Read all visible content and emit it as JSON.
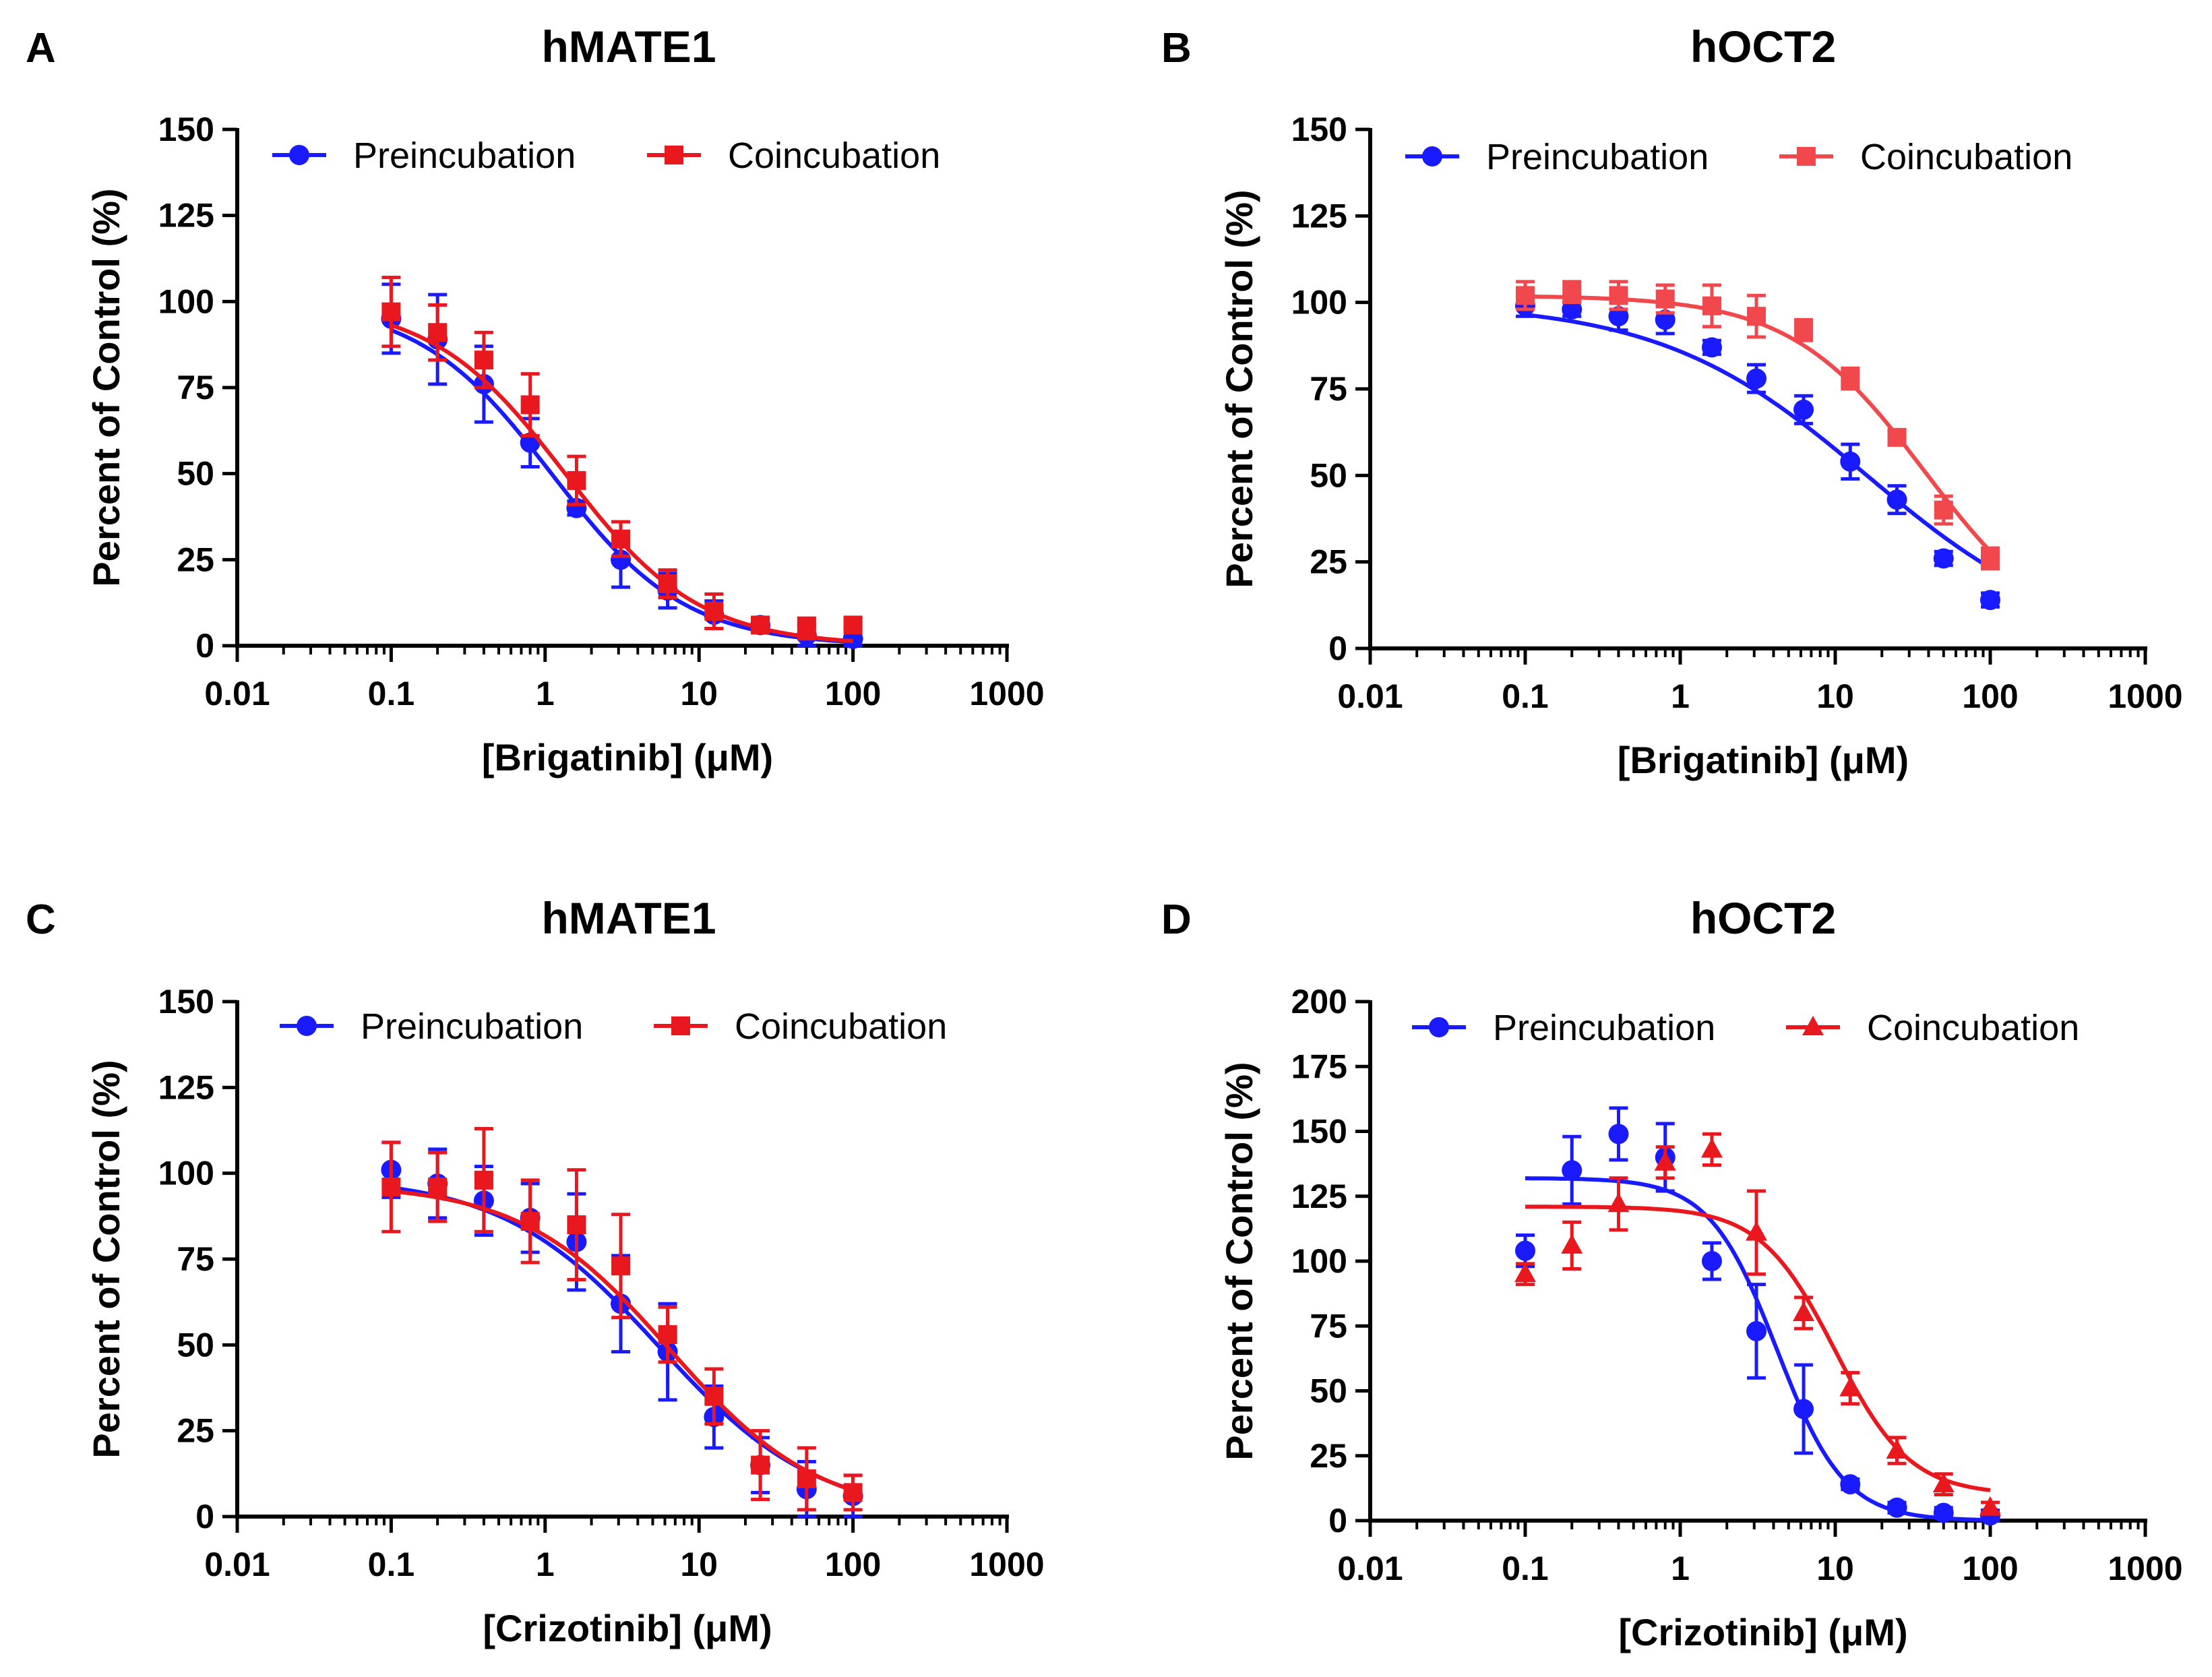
{
  "figure": {
    "colors": {
      "blue": "#1a1aff",
      "red": "#e8181e",
      "red_light": "#f0484c",
      "axis": "#000000"
    }
  },
  "chart_data": [
    {
      "panel": "A",
      "type": "scatter",
      "title": "hMATE1",
      "xlabel": "[Brigatinib] (μM)",
      "ylabel": "Percent of Control (%)",
      "xscale": "log",
      "xlim": [
        0.01,
        1000
      ],
      "ylim": [
        0,
        150
      ],
      "yticks": [
        0,
        25,
        50,
        75,
        100,
        125,
        150
      ],
      "xticks": [
        0.01,
        0.1,
        1,
        10,
        100,
        1000
      ],
      "xtick_labels": [
        "0.01",
        "0.1",
        "1",
        "10",
        "100",
        "1000"
      ],
      "legend_position": "top",
      "series": [
        {
          "name": "Preincubation",
          "color": "#1a1aff",
          "marker": "circle",
          "x": [
            0.1,
            0.2,
            0.4,
            0.8,
            1.6,
            3.1,
            6.25,
            12.5,
            25,
            50,
            100
          ],
          "y": [
            95,
            89,
            76,
            59,
            40,
            25,
            16,
            9,
            6,
            3,
            2
          ],
          "err": [
            10,
            13,
            11,
            7,
            2,
            8,
            5,
            4,
            2,
            3,
            3
          ],
          "fit": {
            "top": 100,
            "bottom": 0,
            "ic50": 1.1,
            "hill": 1.0
          }
        },
        {
          "name": "Coincubation",
          "color": "#e8181e",
          "marker": "square",
          "x": [
            0.1,
            0.2,
            0.4,
            0.8,
            1.6,
            3.1,
            6.25,
            12.5,
            25,
            50,
            100
          ],
          "y": [
            97,
            91,
            83,
            70,
            48,
            31,
            18,
            10,
            6,
            5,
            6
          ],
          "err": [
            10,
            8,
            8,
            9,
            7,
            5,
            4,
            5,
            2,
            3,
            2
          ],
          "fit": {
            "top": 100,
            "bottom": 0,
            "ic50": 1.35,
            "hill": 1.0
          }
        }
      ]
    },
    {
      "panel": "B",
      "type": "scatter",
      "title": "hOCT2",
      "xlabel": "[Brigatinib] (μM)",
      "ylabel": "Percent of Control (%)",
      "xscale": "log",
      "xlim": [
        0.01,
        1000
      ],
      "ylim": [
        0,
        150
      ],
      "yticks": [
        0,
        25,
        50,
        75,
        100,
        125,
        150
      ],
      "xticks": [
        0.01,
        0.1,
        1,
        10,
        100,
        1000
      ],
      "xtick_labels": [
        "0.01",
        "0.1",
        "1",
        "10",
        "100",
        "1000"
      ],
      "legend_position": "top",
      "series": [
        {
          "name": "Preincubation",
          "color": "#1a1aff",
          "marker": "circle",
          "x": [
            0.1,
            0.2,
            0.4,
            0.8,
            1.6,
            3.1,
            6.25,
            12.5,
            25,
            50,
            100
          ],
          "y": [
            99,
            98,
            96,
            95,
            87,
            78,
            69,
            54,
            43,
            26,
            14
          ],
          "err": [
            3,
            2,
            4,
            4,
            2,
            4,
            4,
            5,
            4,
            2,
            2
          ],
          "fit": {
            "top": 100,
            "bottom": 0,
            "ic50": 16,
            "hill": 0.65
          }
        },
        {
          "name": "Coincubation",
          "color": "#f0484c",
          "marker": "square",
          "x": [
            0.1,
            0.2,
            0.4,
            0.8,
            1.6,
            3.1,
            6.25,
            12.5,
            25,
            50,
            100
          ],
          "y": [
            102,
            103,
            102,
            101,
            99,
            96,
            92,
            78,
            61,
            40,
            26
          ],
          "err": [
            4,
            3,
            4,
            4,
            6,
            6,
            3,
            3,
            2,
            4,
            3
          ],
          "fit": {
            "top": 102,
            "bottom": 0,
            "ic50": 38,
            "hill": 1.0
          }
        }
      ]
    },
    {
      "panel": "C",
      "type": "scatter",
      "title": "hMATE1",
      "xlabel": "[Crizotinib] (μM)",
      "ylabel": "Percent of Control (%)",
      "xscale": "log",
      "xlim": [
        0.01,
        1000
      ],
      "ylim": [
        0,
        150
      ],
      "yticks": [
        0,
        25,
        50,
        75,
        100,
        125,
        150
      ],
      "xticks": [
        0.01,
        0.1,
        1,
        10,
        100,
        1000
      ],
      "xtick_labels": [
        "0.01",
        "0.1",
        "1",
        "10",
        "100",
        "1000"
      ],
      "legend_position": "top",
      "series": [
        {
          "name": "Preincubation",
          "color": "#1a1aff",
          "marker": "circle",
          "x": [
            0.1,
            0.2,
            0.4,
            0.8,
            1.6,
            3.1,
            6.25,
            12.5,
            25,
            50,
            100
          ],
          "y": [
            101,
            97,
            92,
            87,
            80,
            62,
            48,
            29,
            15,
            8,
            6
          ],
          "err": [
            8,
            10,
            10,
            10,
            14,
            14,
            14,
            9,
            8,
            8,
            6
          ],
          "fit": {
            "top": 99,
            "bottom": 0,
            "ic50": 5.5,
            "hill": 0.85
          }
        },
        {
          "name": "Coincubation",
          "color": "#e8181e",
          "marker": "square",
          "x": [
            0.1,
            0.2,
            0.4,
            0.8,
            1.6,
            3.1,
            6.25,
            12.5,
            25,
            50,
            100
          ],
          "y": [
            96,
            96,
            98,
            86,
            85,
            73,
            53,
            35,
            15,
            11,
            7
          ],
          "err": [
            13,
            10,
            15,
            12,
            16,
            15,
            8,
            8,
            10,
            9,
            5
          ],
          "fit": {
            "top": 97,
            "bottom": 0,
            "ic50": 6.5,
            "hill": 0.9
          }
        }
      ]
    },
    {
      "panel": "D",
      "type": "scatter",
      "title": "hOCT2",
      "xlabel": "[Crizotinib] (μM)",
      "ylabel": "Percent of Control (%)",
      "xscale": "log",
      "xlim": [
        0.01,
        1000
      ],
      "ylim": [
        0,
        200
      ],
      "yticks": [
        0,
        25,
        50,
        75,
        100,
        125,
        150,
        175,
        200
      ],
      "xticks": [
        0.01,
        0.1,
        1,
        10,
        100,
        1000
      ],
      "xtick_labels": [
        "0.01",
        "0.1",
        "1",
        "10",
        "100",
        "1000"
      ],
      "legend_position": "top",
      "series": [
        {
          "name": "Preincubation",
          "color": "#1a1aff",
          "marker": "circle",
          "x": [
            0.1,
            0.2,
            0.4,
            0.8,
            1.6,
            3.1,
            6.25,
            12.5,
            25,
            50,
            100
          ],
          "y": [
            104,
            135,
            149,
            140,
            100,
            73,
            43,
            14,
            5,
            3,
            2
          ],
          "err": [
            6,
            13,
            10,
            13,
            7,
            18,
            17,
            2,
            2,
            2,
            2
          ],
          "fit": {
            "top": 132,
            "bottom": 0,
            "ic50": 4.2,
            "hill": 2.0
          }
        },
        {
          "name": "Coincubation",
          "color": "#e8181e",
          "marker": "triangle",
          "x": [
            0.1,
            0.2,
            0.4,
            0.8,
            1.6,
            3.1,
            6.25,
            12.5,
            25,
            50,
            100
          ],
          "y": [
            95,
            106,
            122,
            138,
            143,
            111,
            80,
            51,
            27,
            14,
            5
          ],
          "err": [
            4,
            9,
            10,
            6,
            6,
            16,
            6,
            6,
            5,
            4,
            2
          ],
          "fit": {
            "top": 121,
            "bottom": 10,
            "ic50": 10,
            "hill": 1.8
          }
        }
      ]
    }
  ]
}
